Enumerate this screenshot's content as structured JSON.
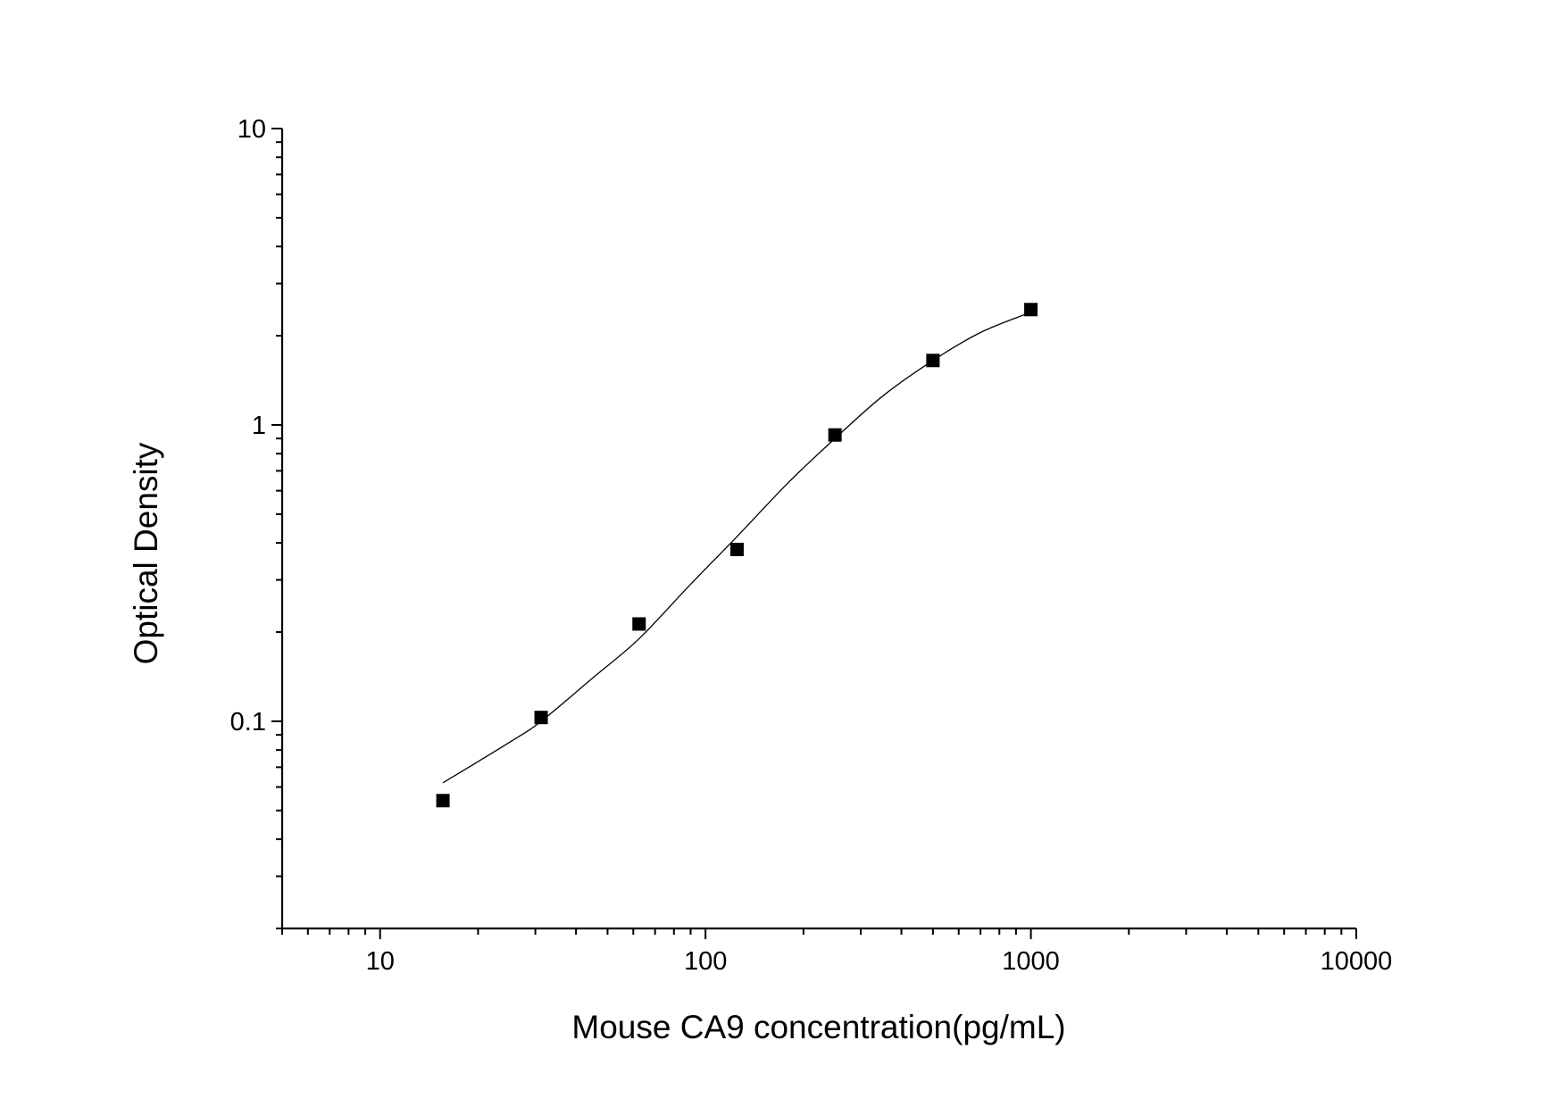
{
  "chart_data": {
    "type": "scatter",
    "title": "",
    "xlabel": "Mouse CA9 concentration(pg/mL)",
    "ylabel": "Optical Density",
    "x_scale": "log",
    "y_scale": "log",
    "xlim": [
      5,
      10000
    ],
    "ylim": [
      0.02,
      10
    ],
    "x_ticks": [
      {
        "value": 10,
        "label": "10"
      },
      {
        "value": 100,
        "label": "100"
      },
      {
        "value": 1000,
        "label": "1000"
      },
      {
        "value": 10000,
        "label": "10000"
      }
    ],
    "y_ticks": [
      {
        "value": 0.1,
        "label": "0.1"
      },
      {
        "value": 1,
        "label": "1"
      },
      {
        "value": 10,
        "label": "10"
      }
    ],
    "grid": false,
    "legend": "none",
    "marker": "square",
    "colors": {
      "points": "#000000",
      "curve": "#000000",
      "axes": "#000000"
    },
    "points": {
      "x": [
        15.6,
        31.25,
        62.5,
        125,
        250,
        500,
        1000
      ],
      "y": [
        0.054,
        0.103,
        0.213,
        0.38,
        0.925,
        1.65,
        2.45
      ]
    },
    "fit_curve": {
      "x": [
        15.6,
        25,
        31.25,
        45,
        62.5,
        90,
        125,
        180,
        250,
        350,
        500,
        700,
        1000
      ],
      "y": [
        0.062,
        0.085,
        0.1,
        0.14,
        0.19,
        0.29,
        0.42,
        0.64,
        0.9,
        1.25,
        1.65,
        2.05,
        2.4
      ]
    }
  }
}
